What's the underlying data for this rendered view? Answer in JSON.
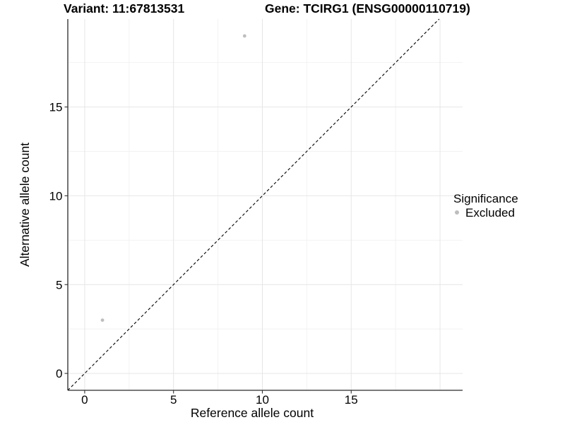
{
  "header": {
    "title_variant": "Variant: 11:67813531",
    "title_gene": "Gene: TCIRG1 (ENSG00000110719)"
  },
  "chart_data": {
    "type": "scatter",
    "title": "Variant: 11:67813531   Gene: TCIRG1 (ENSG00000110719)",
    "xlabel": "Reference allele count",
    "ylabel": "Alternative allele count",
    "xlim": [
      -0.95,
      21.27
    ],
    "ylim": [
      -0.95,
      19.95
    ],
    "x_ticks": [
      0,
      5,
      10,
      15
    ],
    "y_ticks": [
      0,
      5,
      10,
      15
    ],
    "grid": "on",
    "grid_major": [
      0,
      5,
      10,
      15,
      20
    ],
    "grid_minor": [
      2.5,
      7.5,
      12.5,
      17.5
    ],
    "series": [
      {
        "name": "Excluded",
        "color": "#bebebe",
        "points": [
          {
            "x": 1,
            "y": 3
          },
          {
            "x": 9,
            "y": 19
          }
        ]
      }
    ],
    "reference_line": {
      "type": "identity",
      "slope": 1,
      "intercept": 0,
      "style": "dashed",
      "color": "#000000",
      "span": [
        -0.95,
        19.95
      ]
    },
    "legend": {
      "title": "Significance",
      "position": "right",
      "entries": [
        {
          "label": "Excluded",
          "marker_color": "#bebebe"
        }
      ]
    }
  },
  "colors": {
    "background": "#ffffff",
    "grid_major": "#e6e6e6",
    "grid_minor": "#f2f2f2",
    "axis_line": "#2a2a2a",
    "tick_mark": "#333333",
    "text": "#000000",
    "point": "#bebebe"
  }
}
